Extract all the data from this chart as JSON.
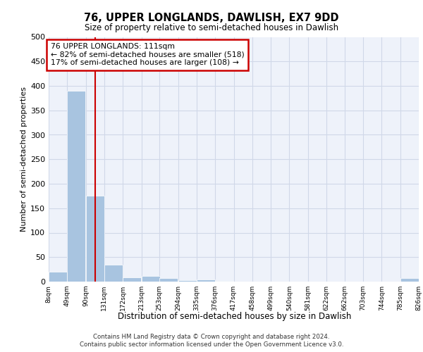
{
  "title": "76, UPPER LONGLANDS, DAWLISH, EX7 9DD",
  "subtitle": "Size of property relative to semi-detached houses in Dawlish",
  "xlabel": "Distribution of semi-detached houses by size in Dawlish",
  "ylabel": "Number of semi-detached properties",
  "footer_line1": "Contains HM Land Registry data © Crown copyright and database right 2024.",
  "footer_line2": "Contains public sector information licensed under the Open Government Licence v3.0.",
  "annotation_line1": "76 UPPER LONGLANDS: 111sqm",
  "annotation_line2": "← 82% of semi-detached houses are smaller (518)",
  "annotation_line3": "17% of semi-detached houses are larger (108) →",
  "property_size": 111,
  "bin_edges": [
    8,
    49,
    90,
    131,
    172,
    213,
    253,
    294,
    335,
    376,
    417,
    458,
    499,
    540,
    581,
    622,
    662,
    703,
    744,
    785,
    826
  ],
  "bin_labels": [
    "8sqm",
    "49sqm",
    "90sqm",
    "131sqm",
    "172sqm",
    "213sqm",
    "253sqm",
    "294sqm",
    "335sqm",
    "376sqm",
    "417sqm",
    "458sqm",
    "499sqm",
    "540sqm",
    "581sqm",
    "622sqm",
    "662sqm",
    "703sqm",
    "744sqm",
    "785sqm",
    "826sqm"
  ],
  "bar_heights": [
    20,
    390,
    175,
    35,
    8,
    11,
    7,
    3,
    5,
    1,
    0,
    0,
    0,
    0,
    0,
    0,
    0,
    0,
    0,
    7
  ],
  "bar_color": "#a8c4e0",
  "vline_color": "#cc0000",
  "vline_x": 111,
  "grid_color": "#d0d8e8",
  "background_color": "#eef2fa",
  "ylim": [
    0,
    500
  ],
  "yticks": [
    0,
    50,
    100,
    150,
    200,
    250,
    300,
    350,
    400,
    450,
    500
  ]
}
